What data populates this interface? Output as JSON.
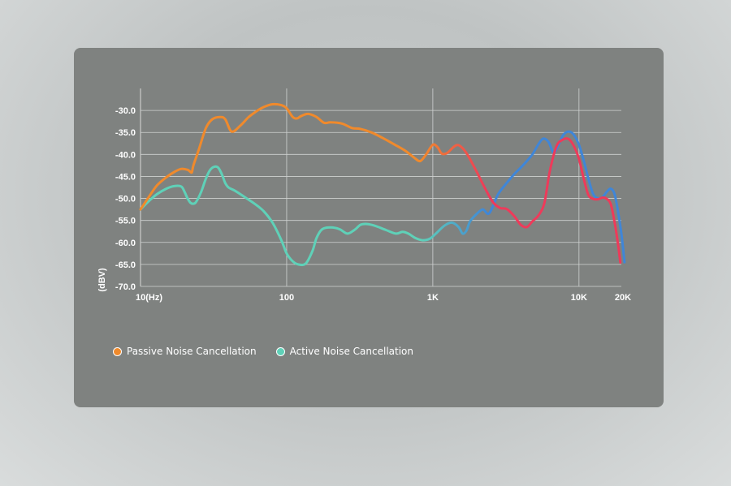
{
  "chart_data": {
    "type": "line",
    "ylabel": "(dBV)",
    "xlabel": "",
    "x_scale": "log",
    "xlim": [
      10,
      20000
    ],
    "ylim": [
      -70,
      -25
    ],
    "grid": true,
    "x_ticks": [
      {
        "value": 10,
        "label": "10(Hz)"
      },
      {
        "value": 100,
        "label": "100"
      },
      {
        "value": 1000,
        "label": "1K"
      },
      {
        "value": 10000,
        "label": "10K"
      },
      {
        "value": 20000,
        "label": "20K"
      }
    ],
    "y_ticks": [
      {
        "value": -30,
        "label": "-30.0"
      },
      {
        "value": -35,
        "label": "-35.0"
      },
      {
        "value": -40,
        "label": "-40.0"
      },
      {
        "value": -45,
        "label": "-45.0"
      },
      {
        "value": -50,
        "label": "-50.0"
      },
      {
        "value": -55,
        "label": "-55.0"
      },
      {
        "value": -60,
        "label": "-60.0"
      },
      {
        "value": -65,
        "label": "-65.0"
      },
      {
        "value": -70,
        "label": "-70.0"
      }
    ],
    "legend_placement": "bottom-left",
    "series": [
      {
        "name": "Passive Noise Cancellation",
        "color": "#f08a2c",
        "gradient_end": "#ee3a5a",
        "x": [
          10,
          11.5,
          13,
          15,
          17,
          19,
          21,
          22,
          22.5,
          23,
          25,
          28,
          31,
          35,
          38,
          42,
          48,
          55,
          62,
          70,
          80,
          92,
          100,
          110,
          118,
          125,
          140,
          160,
          180,
          200,
          240,
          280,
          320,
          380,
          450,
          550,
          650,
          750,
          820,
          900,
          1000,
          1080,
          1150,
          1250,
          1400,
          1500,
          1620,
          1750,
          2000,
          2300,
          2600,
          2900,
          3200,
          3600,
          4000,
          4400,
          4800,
          5300,
          5800,
          6300,
          7000,
          7800,
          8500,
          9200,
          10000,
          10800,
          11600,
          12500,
          13500,
          14500,
          15500,
          16500,
          17500,
          18500,
          19200
        ],
        "values": [
          -52.5,
          -49.5,
          -47,
          -45.2,
          -44,
          -43.3,
          -43.5,
          -44,
          -44,
          -42.5,
          -39,
          -34,
          -32,
          -31.5,
          -32,
          -34.8,
          -33.5,
          -31.5,
          -30.2,
          -29.2,
          -28.6,
          -28.8,
          -29.5,
          -31.5,
          -31.8,
          -31.3,
          -30.8,
          -31.5,
          -32.8,
          -32.7,
          -33,
          -34,
          -34.2,
          -35,
          -36.2,
          -37.8,
          -39.2,
          -40.8,
          -41.5,
          -40,
          -37.8,
          -38.4,
          -39.8,
          -39.7,
          -38.2,
          -37.9,
          -38.8,
          -40.4,
          -44,
          -48,
          -51,
          -52.2,
          -52.4,
          -54,
          -56,
          -56.5,
          -55.2,
          -53.8,
          -51,
          -44,
          -38.2,
          -36.6,
          -36.5,
          -38,
          -41,
          -45.6,
          -49.2,
          -50.1,
          -50.2,
          -49.8,
          -50.1,
          -51.3,
          -55.3,
          -60.4,
          -64.6
        ]
      },
      {
        "name": "Active Noise Cancellation",
        "color": "#5fd1b8",
        "gradient_end": "#3f86d8",
        "x": [
          10,
          11.5,
          13,
          15,
          17,
          19,
          20,
          21,
          22,
          23,
          24,
          26,
          28,
          30,
          32,
          34,
          36,
          38,
          40,
          44,
          48,
          55,
          62,
          70,
          80,
          92,
          100,
          110,
          120,
          135,
          150,
          160,
          175,
          200,
          230,
          260,
          290,
          320,
          350,
          400,
          480,
          560,
          620,
          680,
          760,
          850,
          950,
          1050,
          1200,
          1350,
          1500,
          1600,
          1700,
          1800,
          2000,
          2200,
          2400,
          2600,
          2800,
          3200,
          3600,
          4000,
          4400,
          4800,
          5300,
          5700,
          6200,
          6700,
          7200,
          7800,
          8500,
          9200,
          10000,
          10800,
          11600,
          12500,
          13500,
          14500,
          15500,
          16500,
          17500,
          18500,
          19500,
          20500
        ],
        "values": [
          -52.5,
          -50.5,
          -49,
          -47.8,
          -47.2,
          -47.3,
          -48.5,
          -50,
          -51,
          -51.2,
          -50.8,
          -48.5,
          -45.5,
          -43.5,
          -42.8,
          -43,
          -44.5,
          -46.5,
          -47.5,
          -48.2,
          -49,
          -50.3,
          -51.5,
          -53,
          -55.5,
          -59.5,
          -62.5,
          -64.3,
          -65,
          -64.8,
          -62,
          -59,
          -57,
          -56.6,
          -57,
          -58,
          -57.2,
          -56,
          -55.8,
          -56.2,
          -57.2,
          -58,
          -57.6,
          -58,
          -59,
          -59.5,
          -59.2,
          -58,
          -56.2,
          -55.5,
          -56.5,
          -58,
          -57.3,
          -55.2,
          -53.5,
          -52.5,
          -53.5,
          -51.5,
          -49,
          -46.5,
          -44.5,
          -43,
          -41.5,
          -40,
          -37.6,
          -36.4,
          -37.2,
          -39.6,
          -38,
          -35.6,
          -34.8,
          -35.5,
          -37.8,
          -41.5,
          -45.5,
          -49,
          -50,
          -49.7,
          -48.5,
          -47.8,
          -49,
          -53,
          -58,
          -64.5
        ]
      }
    ]
  },
  "legend": {
    "passive_label": "Passive Noise Cancellation",
    "active_label": "Active Noise Cancellation",
    "passive_color": "#f08a2c",
    "active_color": "#5fd1b8"
  }
}
